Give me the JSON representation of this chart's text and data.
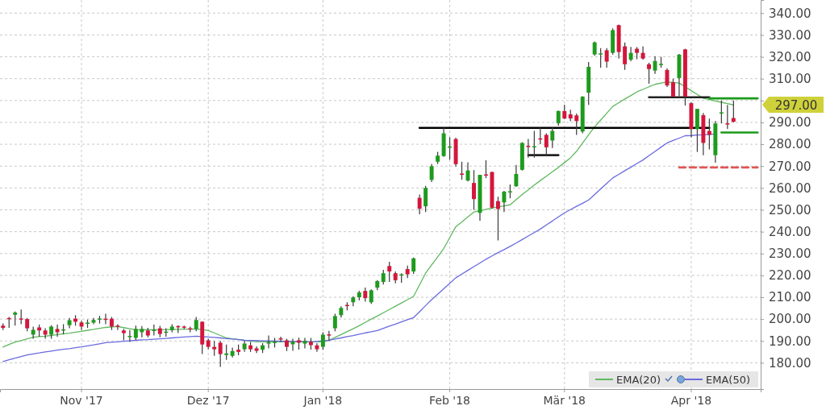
{
  "chart_data": {
    "type": "candlestick",
    "categories": [
      null,
      null,
      null,
      null,
      null,
      null,
      null,
      null,
      null,
      null,
      null,
      null,
      null,
      "Nov '17",
      null,
      null,
      null,
      null,
      null,
      null,
      null,
      null,
      null,
      null,
      null,
      null,
      null,
      null,
      null,
      null,
      null,
      null,
      null,
      null,
      "Dez '17",
      null,
      null,
      null,
      null,
      null,
      null,
      null,
      null,
      null,
      null,
      null,
      null,
      null,
      null,
      null,
      null,
      null,
      null,
      "Jan '18",
      null,
      null,
      null,
      null,
      null,
      null,
      null,
      null,
      null,
      null,
      null,
      null,
      null,
      null,
      null,
      null,
      null,
      null,
      null,
      null,
      "Feb '18",
      null,
      null,
      null,
      null,
      null,
      null,
      null,
      null,
      null,
      null,
      null,
      null,
      null,
      null,
      null,
      null,
      null,
      null,
      "Mär '18",
      null,
      null,
      null,
      null,
      null,
      null,
      null,
      null,
      null,
      null,
      null,
      null,
      null,
      null,
      null,
      null,
      null,
      null,
      null,
      null,
      "Apr '18",
      null,
      null,
      null,
      null,
      null,
      null,
      null,
      null,
      null,
      null,
      null
    ],
    "ylim": [
      168,
      346
    ],
    "yticks": [
      {
        "value": 180,
        "label": "180.00"
      },
      {
        "value": 190,
        "label": "190.00"
      },
      {
        "value": 200,
        "label": "200.00"
      },
      {
        "value": 210,
        "label": "210.00"
      },
      {
        "value": 220,
        "label": "220.00"
      },
      {
        "value": 230,
        "label": "230.00"
      },
      {
        "value": 240,
        "label": "240.00"
      },
      {
        "value": 250,
        "label": "250.00"
      },
      {
        "value": 260,
        "label": "260.00"
      },
      {
        "value": 270,
        "label": "270.00"
      },
      {
        "value": 280,
        "label": "280.00"
      },
      {
        "value": 290,
        "label": "290.00"
      },
      {
        "value": 300,
        "label": null
      },
      {
        "value": 310,
        "label": "310.00"
      },
      {
        "value": 320,
        "label": "320.00"
      },
      {
        "value": 330,
        "label": "330.00"
      },
      {
        "value": 340,
        "label": "340.00"
      }
    ],
    "grid": true,
    "legend": "bottom right",
    "annotations": [
      "297.00"
    ],
    "series": [
      {
        "type": "line",
        "name": "EMA(20)",
        "color": "#5fb85f",
        "values": [
          187.2,
          188.4,
          189.5,
          190.2,
          191.0,
          191.7,
          192.0,
          192.2,
          192.5,
          192.9,
          193.3,
          193.6,
          194.0,
          194.4,
          194.9,
          195.3,
          195.8,
          196.2,
          196.4,
          196.6,
          196.1,
          195.6,
          195.1,
          195.1,
          195.1,
          195.1,
          195.1,
          195.2,
          195.2,
          195.3,
          195.4,
          195.4,
          195.5,
          195.2,
          194.8,
          193.7,
          192.5,
          191.4,
          191.0,
          190.7,
          190.3,
          190.0,
          189.6,
          189.6,
          189.6,
          189.6,
          189.6,
          189.6,
          189.6,
          189.6,
          189.6,
          189.6,
          189.6,
          189.6,
          190.3,
          191.6,
          192.9,
          194.3,
          195.6,
          197.0,
          198.5,
          200.0,
          201.4,
          202.9,
          204.4,
          205.9,
          207.4,
          208.9,
          210.4,
          215.7,
          221.0,
          224.8,
          228.5,
          232.3,
          237.3,
          242.3,
          244.5,
          246.8,
          249.0,
          249.6,
          250.2,
          250.8,
          251.3,
          251.8,
          252.3,
          254.7,
          257.0,
          259.1,
          261.3,
          263.4,
          265.4,
          267.4,
          269.4,
          271.6,
          273.8,
          276.8,
          280.5,
          284.3,
          288.0,
          291.1,
          294.2,
          297.3,
          299.0,
          300.7,
          302.3,
          304.0,
          305.1,
          306.3,
          307.4,
          308.0,
          308.5,
          308.3,
          308.0,
          306.3,
          304.5,
          302.8,
          301.0,
          300.4,
          299.8,
          299.2,
          298.6,
          298.0,
          null,
          null,
          null,
          null
        ]
      },
      {
        "type": "line",
        "name": "EMA(50)",
        "color": "#6a6ae0",
        "values": [
          180.6,
          181.4,
          182.1,
          182.9,
          183.6,
          184.1,
          184.5,
          185.0,
          185.4,
          185.8,
          186.2,
          186.5,
          186.9,
          187.3,
          187.8,
          188.2,
          188.7,
          189.2,
          189.4,
          189.6,
          189.9,
          190.1,
          190.3,
          190.5,
          190.6,
          190.8,
          191.0,
          191.2,
          191.4,
          191.6,
          191.8,
          192.0,
          192.2,
          192.0,
          191.8,
          191.6,
          191.4,
          191.1,
          190.9,
          190.6,
          190.3,
          190.2,
          190.2,
          190.1,
          190.1,
          190.0,
          189.9,
          189.9,
          189.8,
          189.7,
          189.7,
          189.6,
          189.8,
          190.1,
          190.3,
          190.9,
          191.4,
          192.0,
          192.5,
          193.1,
          193.7,
          194.2,
          194.8,
          195.8,
          196.8,
          197.7,
          198.7,
          199.7,
          200.7,
          203.4,
          206.2,
          208.9,
          211.4,
          213.9,
          216.4,
          218.9,
          220.6,
          222.3,
          224.0,
          225.7,
          227.4,
          228.9,
          230.4,
          231.8,
          233.3,
          234.8,
          236.4,
          238.0,
          239.6,
          241.2,
          243.1,
          244.9,
          246.8,
          248.6,
          250.1,
          251.6,
          253.0,
          254.5,
          257.0,
          259.6,
          262.1,
          264.6,
          266.2,
          267.9,
          269.5,
          271.2,
          272.8,
          274.8,
          276.7,
          278.7,
          280.6,
          281.7,
          282.8,
          283.9,
          284.0,
          284.2,
          284.3,
          284.5,
          284.7,
          null,
          null,
          null,
          null,
          null,
          null,
          null
        ]
      },
      {
        "type": "line",
        "color": "#000000",
        "values": [
          null,
          null,
          null,
          null,
          null,
          null,
          null,
          null,
          null,
          null,
          null,
          null,
          null,
          null,
          null,
          null,
          null,
          null,
          null,
          null,
          null,
          null,
          null,
          null,
          null,
          null,
          null,
          null,
          null,
          null,
          null,
          null,
          null,
          null,
          null,
          null,
          null,
          null,
          null,
          null,
          null,
          null,
          null,
          null,
          null,
          null,
          null,
          null,
          null,
          null,
          null,
          null,
          null,
          null,
          null,
          null,
          null,
          null,
          null,
          null,
          null,
          null,
          null,
          null,
          null,
          null,
          null,
          null,
          null,
          287.5,
          287.5,
          287.5,
          287.5,
          287.5,
          287.5,
          287.5,
          287.5,
          287.5,
          287.5,
          287.5,
          287.5,
          287.5,
          287.5,
          287.5,
          287.5,
          287.5,
          287.5,
          287.5,
          287.5,
          287.5,
          287.5,
          287.5,
          287.5,
          287.5,
          287.5,
          287.5,
          287.5,
          287.5,
          287.5,
          287.5,
          287.5,
          287.5,
          287.5,
          287.5,
          287.5,
          287.5,
          287.5,
          287.5,
          287.5,
          287.5,
          287.5,
          287.5,
          287.5,
          287.5,
          287.5,
          287.5,
          287.5,
          287.5,
          null,
          null,
          null,
          null,
          null,
          null,
          null,
          null
        ]
      },
      {
        "type": "line",
        "color": "#222222",
        "values": [
          null,
          null,
          null,
          null,
          null,
          null,
          null,
          null,
          null,
          null,
          null,
          null,
          null,
          null,
          null,
          null,
          null,
          null,
          null,
          null,
          null,
          null,
          null,
          null,
          null,
          null,
          null,
          null,
          null,
          null,
          null,
          null,
          null,
          null,
          null,
          null,
          null,
          null,
          null,
          null,
          null,
          null,
          null,
          null,
          null,
          null,
          null,
          null,
          null,
          null,
          null,
          null,
          null,
          null,
          null,
          null,
          null,
          null,
          null,
          null,
          null,
          null,
          null,
          null,
          null,
          null,
          null,
          null,
          null,
          null,
          null,
          null,
          null,
          null,
          null,
          null,
          null,
          null,
          null,
          null,
          null,
          null,
          null,
          null,
          null,
          null,
          null,
          275,
          275,
          275,
          275,
          275,
          275,
          null,
          null,
          null,
          null,
          null,
          null,
          null,
          null,
          null,
          null,
          null,
          null,
          null,
          null,
          null,
          null,
          null,
          null,
          null,
          null,
          null,
          null,
          null,
          null,
          null,
          null,
          null,
          null,
          null,
          null,
          null,
          null,
          null
        ]
      },
      {
        "type": "line",
        "color": "#222222",
        "values": [
          null,
          null,
          null,
          null,
          null,
          null,
          null,
          null,
          null,
          null,
          null,
          null,
          null,
          null,
          null,
          null,
          null,
          null,
          null,
          null,
          null,
          null,
          null,
          null,
          null,
          null,
          null,
          null,
          null,
          null,
          null,
          null,
          null,
          null,
          null,
          null,
          null,
          null,
          null,
          null,
          null,
          null,
          null,
          null,
          null,
          null,
          null,
          null,
          null,
          null,
          null,
          null,
          null,
          null,
          null,
          null,
          null,
          null,
          null,
          null,
          null,
          null,
          null,
          null,
          null,
          null,
          null,
          null,
          null,
          null,
          null,
          null,
          null,
          null,
          null,
          null,
          null,
          null,
          null,
          null,
          null,
          null,
          null,
          null,
          null,
          null,
          null,
          null,
          null,
          null,
          null,
          null,
          null,
          null,
          null,
          null,
          null,
          null,
          null,
          null,
          null,
          null,
          null,
          null,
          null,
          null,
          null,
          301.5,
          301.5,
          301.5,
          301.5,
          301.5,
          301.5,
          301.5,
          301.5,
          301.5,
          301.5,
          301.5,
          null,
          null,
          null,
          null,
          null,
          null,
          null,
          null
        ]
      },
      {
        "type": "line",
        "color": "#1a9a1a",
        "values": [
          null,
          null,
          null,
          null,
          null,
          null,
          null,
          null,
          null,
          null,
          null,
          null,
          null,
          null,
          null,
          null,
          null,
          null,
          null,
          null,
          null,
          null,
          null,
          null,
          null,
          null,
          null,
          null,
          null,
          null,
          null,
          null,
          null,
          null,
          null,
          null,
          null,
          null,
          null,
          null,
          null,
          null,
          null,
          null,
          null,
          null,
          null,
          null,
          null,
          null,
          null,
          null,
          null,
          null,
          null,
          null,
          null,
          null,
          null,
          null,
          null,
          null,
          null,
          null,
          null,
          null,
          null,
          null,
          null,
          null,
          null,
          null,
          null,
          null,
          null,
          null,
          null,
          null,
          null,
          null,
          null,
          null,
          null,
          null,
          null,
          null,
          null,
          null,
          null,
          null,
          null,
          null,
          null,
          null,
          null,
          null,
          null,
          null,
          null,
          null,
          null,
          null,
          null,
          null,
          null,
          null,
          null,
          null,
          null,
          null,
          null,
          null,
          null,
          null,
          null,
          null,
          null,
          301,
          301,
          301,
          301,
          301,
          301,
          301,
          301,
          301
        ]
      },
      {
        "type": "line",
        "color": "#1a9a1a",
        "values": [
          null,
          null,
          null,
          null,
          null,
          null,
          null,
          null,
          null,
          null,
          null,
          null,
          null,
          null,
          null,
          null,
          null,
          null,
          null,
          null,
          null,
          null,
          null,
          null,
          null,
          null,
          null,
          null,
          null,
          null,
          null,
          null,
          null,
          null,
          null,
          null,
          null,
          null,
          null,
          null,
          null,
          null,
          null,
          null,
          null,
          null,
          null,
          null,
          null,
          null,
          null,
          null,
          null,
          null,
          null,
          null,
          null,
          null,
          null,
          null,
          null,
          null,
          null,
          null,
          null,
          null,
          null,
          null,
          null,
          null,
          null,
          null,
          null,
          null,
          null,
          null,
          null,
          null,
          null,
          null,
          null,
          null,
          null,
          null,
          null,
          null,
          null,
          null,
          null,
          null,
          null,
          null,
          null,
          null,
          null,
          null,
          null,
          null,
          null,
          null,
          null,
          null,
          null,
          null,
          null,
          null,
          null,
          null,
          null,
          null,
          null,
          null,
          null,
          null,
          null,
          null,
          null,
          null,
          null,
          285.4,
          285.4,
          285.4,
          285.4,
          285.4,
          285.4,
          285.4
        ]
      },
      {
        "type": "line",
        "color": "#e05555",
        "line_style": "dashed",
        "values": [
          null,
          null,
          null,
          null,
          null,
          null,
          null,
          null,
          null,
          null,
          null,
          null,
          null,
          null,
          null,
          null,
          null,
          null,
          null,
          null,
          null,
          null,
          null,
          null,
          null,
          null,
          null,
          null,
          null,
          null,
          null,
          null,
          null,
          null,
          null,
          null,
          null,
          null,
          null,
          null,
          null,
          null,
          null,
          null,
          null,
          null,
          null,
          null,
          null,
          null,
          null,
          null,
          null,
          null,
          null,
          null,
          null,
          null,
          null,
          null,
          null,
          null,
          null,
          null,
          null,
          null,
          null,
          null,
          null,
          null,
          null,
          null,
          null,
          null,
          null,
          null,
          null,
          null,
          null,
          null,
          null,
          null,
          null,
          null,
          null,
          null,
          null,
          null,
          null,
          null,
          null,
          null,
          null,
          null,
          null,
          null,
          null,
          null,
          null,
          null,
          null,
          null,
          null,
          null,
          null,
          null,
          null,
          null,
          null,
          null,
          null,
          null,
          269.4,
          269.4,
          269.4,
          269.4,
          269.4,
          269.4,
          269.4,
          269.4,
          269.4,
          269.4,
          269.4,
          269.4,
          269.4,
          269.4
        ]
      },
      {
        "colors": [
          "#d4163c",
          "#d4163c",
          "#1e9b1e",
          "#d4163c",
          "#d4163c",
          "#1e9b1e",
          "#d4163c",
          "#d4163c",
          "#1e9b1e",
          "#d4163c",
          "#1e9b1e",
          "#1e9b1e",
          "#d4163c",
          "#d4163c",
          "#1e9b1e",
          "#1e9b1e",
          "#1e9b1e",
          "#d4163c",
          "#d4163c",
          "#d4163c",
          "#d4163c",
          "#1e9b1e",
          "#1e9b1e",
          "#1e9b1e",
          "#d4163c",
          "#1e9b1e",
          "#d4163c",
          "#1e9b1e",
          "#1e9b1e",
          "#d4163c",
          "#d4163c",
          "#d4163c",
          "#1e9b1e",
          "#d4163c",
          "#d4163c",
          "#d4163c",
          "#d4163c",
          "#1e9b1e",
          "#1e9b1e",
          "#d4163c",
          "#1e9b1e",
          "#d4163c",
          "#d4163c",
          "#1e9b1e",
          "#1e9b1e",
          "#1e9b1e",
          "#d4163c",
          "#d4163c",
          "#1e9b1e",
          "#d4163c",
          "#1e9b1e",
          "#d4163c",
          "#d4163c",
          "#1e9b1e",
          "#d4163c",
          "#1e9b1e",
          "#1e9b1e",
          "#d4163c",
          "#1e9b1e",
          "#1e9b1e",
          "#d4163c",
          "#1e9b1e",
          "#1e9b1e",
          "#1e9b1e",
          "#d4163c",
          "#d4163c",
          "#1e9b1e",
          "#d4163c",
          "#1e9b1e",
          "#d4163c",
          "#1e9b1e",
          "#1e9b1e",
          "#1e9b1e",
          "#1e9b1e",
          "#1e9b1e",
          "#d4163c",
          "#d4163c",
          "#1e9b1e",
          "#d4163c",
          "#1e9b1e",
          "#d4163c",
          "#d4163c",
          "#d4163c",
          "#1e9b1e",
          "#1e9b1e",
          "#1e9b1e",
          "#1e9b1e",
          "#d4163c",
          "#1e9b1e",
          "#d4163c",
          "#d4163c",
          "#1e9b1e",
          "#1e9b1e",
          "#d4163c",
          "#d4163c",
          "#d4163c",
          "#1e9b1e",
          "#1e9b1e",
          "#1e9b1e",
          "#1e9b1e",
          "#d4163c",
          "#1e9b1e",
          "#d4163c",
          "#d4163c",
          "#1e9b1e",
          "#d4163c",
          "#d4163c",
          "#d4163c",
          "#1e9b1e",
          "#1e9b1e",
          "#d4163c",
          "#d4163c",
          "#1e9b1e",
          "#d4163c",
          "#d4163c",
          "#1e9b1e",
          "#d4163c",
          "#d4163c",
          "#1e9b1e",
          "#1e9b1e",
          "#d4163c",
          "#d4163c",
          null,
          null,
          null,
          null
        ],
        "ohlc": [
          [
            197,
            198,
            195,
            196
          ],
          [
            200.5,
            201,
            196,
            200
          ],
          [
            202,
            203.5,
            197,
            203
          ],
          [
            200.3,
            204.4,
            197.7,
            200
          ],
          [
            200,
            200.5,
            194.4,
            195.8
          ],
          [
            192.9,
            196.6,
            191,
            195.1
          ],
          [
            196.2,
            197.5,
            192,
            194.8
          ],
          [
            194.8,
            195.8,
            191,
            192.9
          ],
          [
            192.9,
            197.2,
            191,
            196.6
          ],
          [
            195.5,
            197.5,
            192,
            194
          ],
          [
            195,
            197.7,
            193,
            195.3
          ],
          [
            197.2,
            200.5,
            195.8,
            199.5
          ],
          [
            200.2,
            201.8,
            197,
            198.8
          ],
          [
            198.5,
            199.2,
            195,
            196.6
          ],
          [
            198,
            199.8,
            196,
            198.4
          ],
          [
            198.4,
            200.5,
            197.7,
            199.6
          ],
          [
            200,
            201.5,
            198,
            200.3
          ],
          [
            200.2,
            202.5,
            197.7,
            199.8
          ],
          [
            200.2,
            201,
            195,
            196.6
          ],
          [
            197,
            197.7,
            195,
            196.5
          ],
          [
            194.8,
            195.5,
            190.3,
            193.6
          ],
          [
            192,
            195,
            189.6,
            192.3
          ],
          [
            191.4,
            197,
            190.5,
            195.5
          ],
          [
            194,
            196.8,
            191.7,
            195.5
          ],
          [
            194.8,
            196,
            191.7,
            192.5
          ],
          [
            194.8,
            197.5,
            192.5,
            195.1
          ],
          [
            195.8,
            196.9,
            191.7,
            193.2
          ],
          [
            194,
            195.8,
            192,
            194.3
          ],
          [
            195,
            197.7,
            194,
            196.6
          ],
          [
            196.8,
            197.2,
            193.6,
            196.3
          ],
          [
            196.6,
            197,
            195.5,
            196.2
          ],
          [
            195.8,
            196.6,
            194,
            195.3
          ],
          [
            195.5,
            201,
            194.4,
            199.6
          ],
          [
            198.8,
            199,
            184,
            188.4
          ],
          [
            190.3,
            191,
            186.2,
            187.3
          ],
          [
            187.3,
            190,
            183.2,
            186.2
          ],
          [
            189.2,
            190,
            178.1,
            184
          ],
          [
            183.6,
            188.4,
            181.4,
            184.3
          ],
          [
            183.2,
            187,
            182.5,
            185.4
          ],
          [
            186,
            188.4,
            183.5,
            185
          ],
          [
            186.2,
            190,
            185,
            188.8
          ],
          [
            188,
            189.6,
            185,
            186.2
          ],
          [
            186.6,
            187.5,
            184.5,
            185.5
          ],
          [
            186,
            189,
            184.5,
            188
          ],
          [
            188.8,
            192.5,
            186.6,
            189.6
          ],
          [
            189.2,
            191.4,
            187,
            189.6
          ],
          [
            191.2,
            192,
            189.6,
            190.8
          ],
          [
            190.3,
            191,
            185.4,
            187.3
          ],
          [
            188.5,
            191,
            185.5,
            189.6
          ],
          [
            190.3,
            191.5,
            186,
            189.2
          ],
          [
            188.8,
            191.4,
            186.6,
            190
          ],
          [
            189.6,
            191.4,
            186,
            188.1
          ],
          [
            188,
            189,
            185,
            186.2
          ],
          [
            187.3,
            194,
            186,
            192.9
          ],
          [
            193,
            194.6,
            190,
            192.5
          ],
          [
            195.8,
            202.5,
            194.4,
            201.4
          ],
          [
            201.8,
            205.9,
            200.7,
            205.1
          ],
          [
            206.5,
            207.7,
            204,
            206.1
          ],
          [
            207.7,
            210.5,
            205.9,
            209.9
          ],
          [
            210,
            213,
            208.5,
            212.2
          ],
          [
            212.9,
            214.4,
            208,
            209.6
          ],
          [
            207.7,
            213.6,
            207,
            213.2
          ],
          [
            214.4,
            217.8,
            213.2,
            217.4
          ],
          [
            217,
            222.5,
            215.8,
            221
          ],
          [
            224.3,
            226.2,
            217,
            221.8
          ],
          [
            221,
            221.8,
            216.4,
            217.8
          ],
          [
            220.2,
            221,
            216.6,
            220.5
          ],
          [
            222.9,
            224.5,
            218.8,
            220.5
          ],
          [
            221.8,
            228.2,
            220.7,
            227.8
          ],
          [
            255.5,
            257,
            248,
            250.5
          ],
          [
            251.6,
            261,
            249,
            260
          ],
          [
            263.7,
            271,
            262.7,
            270
          ],
          [
            272,
            276.5,
            271,
            274.8
          ],
          [
            274.6,
            287.6,
            274.2,
            285
          ],
          [
            278.4,
            283.2,
            273,
            279
          ],
          [
            282.4,
            283,
            269.8,
            270.9
          ],
          [
            266.6,
            272,
            263.8,
            266.2
          ],
          [
            263.4,
            271.7,
            263,
            268
          ],
          [
            262.3,
            268.2,
            250,
            254.9
          ],
          [
            248.6,
            266,
            245,
            266
          ],
          [
            266.2,
            272.7,
            264.5,
            265.8
          ],
          [
            267.3,
            267.5,
            250.5,
            251
          ],
          [
            254,
            256,
            236,
            250.4
          ],
          [
            253.4,
            258.7,
            249,
            258.3
          ],
          [
            258,
            261.6,
            255.3,
            258.5
          ],
          [
            260.8,
            270.5,
            260.5,
            266.4
          ],
          [
            268.3,
            281,
            268,
            280.6
          ],
          [
            279.3,
            282.4,
            273.9,
            278.9
          ],
          [
            278.6,
            286.1,
            273.9,
            279.1
          ],
          [
            282.7,
            287.6,
            280,
            282.2
          ],
          [
            284.3,
            285,
            274.6,
            278.6
          ],
          [
            281.7,
            287.6,
            278.3,
            286.1
          ],
          [
            289.6,
            295.4,
            288.5,
            295.2
          ],
          [
            295.2,
            298.1,
            291.5,
            291.8
          ],
          [
            293.7,
            295.8,
            290.5,
            291.8
          ],
          [
            293.2,
            294,
            284.3,
            290.6
          ],
          [
            285.8,
            302,
            285,
            301.8
          ],
          [
            303.6,
            317.6,
            298,
            315.4
          ],
          [
            321.1,
            327,
            320.5,
            326.6
          ],
          [
            321.2,
            324,
            315,
            321.6
          ],
          [
            323,
            324,
            315,
            317.8
          ],
          [
            321.8,
            333,
            321,
            332.2
          ],
          [
            334.5,
            334.8,
            319.2,
            322.2
          ],
          [
            324.8,
            326.6,
            314,
            316.6
          ],
          [
            318.7,
            324.5,
            318,
            321.8
          ],
          [
            323.7,
            324.5,
            318.9,
            321.8
          ],
          [
            321.8,
            324.8,
            318.7,
            319.2
          ],
          [
            316.6,
            317.3,
            307.7,
            314.4
          ],
          [
            313.7,
            320.3,
            312.2,
            318.1
          ],
          [
            316.5,
            320,
            315,
            316.8
          ],
          [
            314,
            314.8,
            306.2,
            306.9
          ],
          [
            308.4,
            310,
            301.8,
            301.8
          ],
          [
            310.3,
            321.3,
            302,
            321
          ],
          [
            323.4,
            323.7,
            297.7,
            301.8
          ],
          [
            298.8,
            299.2,
            283.2,
            286.9
          ],
          [
            286.9,
            296.2,
            276.5,
            296.2
          ],
          [
            293.3,
            294.3,
            275,
            280.6
          ],
          [
            286.1,
            291.7,
            277.6,
            284.3
          ],
          [
            275,
            290.6,
            271.6,
            289.5
          ],
          [
            294.2,
            300,
            289.5,
            294.6
          ],
          [
            289.6,
            298,
            287,
            289.2
          ],
          [
            292,
            300,
            290,
            290.3
          ],
          null,
          null,
          null,
          null
        ]
      }
    ]
  }
}
